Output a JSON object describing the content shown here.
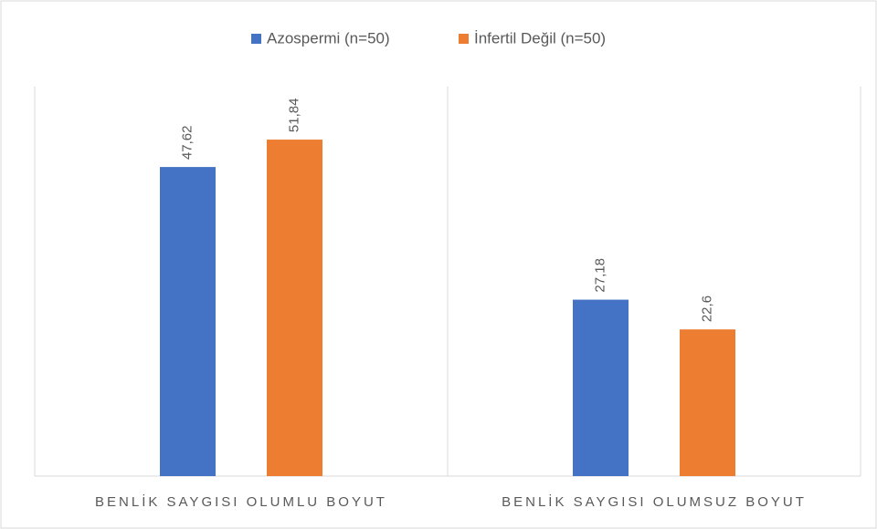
{
  "chart_data": {
    "type": "bar",
    "categories": [
      "BENLİK SAYGISI OLUMLU BOYUT",
      "BENLİK SAYGISI OLUMSUZ BOYUT"
    ],
    "series": [
      {
        "name": "Azospermi (n=50)",
        "color": "#4472c4",
        "values": [
          47.62,
          27.18
        ],
        "value_labels": [
          "47,62",
          "27,18"
        ]
      },
      {
        "name": "İnfertil Değil (n=50)",
        "color": "#ed7d31",
        "values": [
          51.84,
          22.6
        ],
        "value_labels": [
          "51,84",
          "22,6"
        ]
      }
    ],
    "ylim": [
      0,
      60
    ],
    "legend": "top"
  }
}
